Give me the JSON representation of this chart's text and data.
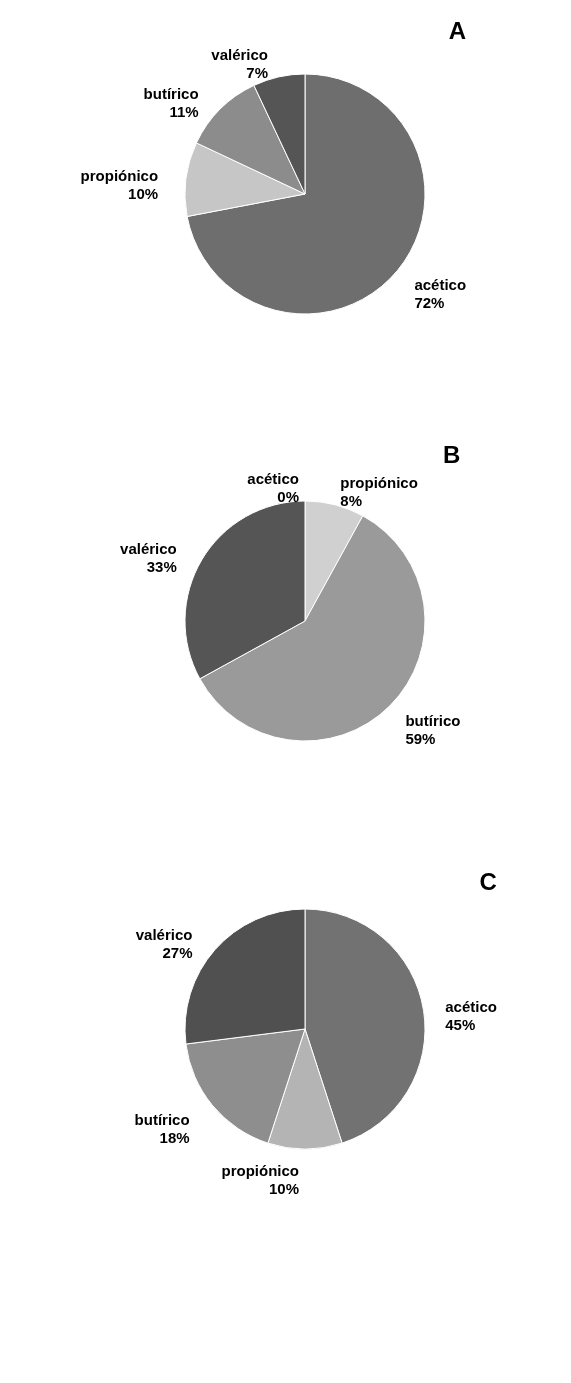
{
  "chart_data": [
    {
      "type": "pie",
      "title": "A",
      "categories": [
        "acético",
        "propiónico",
        "butírico",
        "valérico"
      ],
      "values": [
        72,
        10,
        11,
        7
      ],
      "value_labels": [
        "72%",
        "10%",
        "11%",
        "7%"
      ],
      "colors": [
        "#6e6e6e",
        "#c6c6c6",
        "#8c8c8c",
        "#555555"
      ]
    },
    {
      "type": "pie",
      "title": "B",
      "categories": [
        "acético",
        "propiónico",
        "butírico",
        "valérico"
      ],
      "values": [
        0,
        8,
        59,
        33
      ],
      "value_labels": [
        "0%",
        "8%",
        "59%",
        "33%"
      ],
      "colors": [
        "#777777",
        "#d0d0d0",
        "#9a9a9a",
        "#555555"
      ]
    },
    {
      "type": "pie",
      "title": "C",
      "categories": [
        "acético",
        "propiónico",
        "butírico",
        "valérico"
      ],
      "values": [
        45,
        10,
        18,
        27
      ],
      "value_labels": [
        "45%",
        "10%",
        "18%",
        "27%"
      ],
      "colors": [
        "#727272",
        "#b4b4b4",
        "#8e8e8e",
        "#505050"
      ]
    }
  ]
}
